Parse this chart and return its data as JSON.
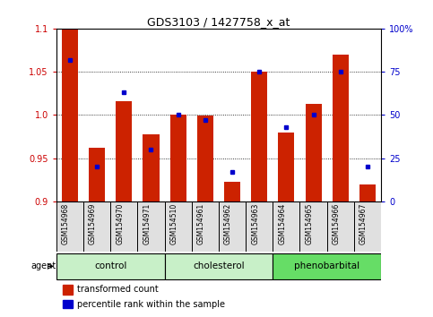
{
  "title": "GDS3103 / 1427758_x_at",
  "categories": [
    "GSM154968",
    "GSM154969",
    "GSM154970",
    "GSM154971",
    "GSM154510",
    "GSM154961",
    "GSM154962",
    "GSM154963",
    "GSM154964",
    "GSM154965",
    "GSM154966",
    "GSM154967"
  ],
  "red_values": [
    1.1,
    0.962,
    1.016,
    0.978,
    1.0,
    0.999,
    0.923,
    1.05,
    0.98,
    1.013,
    1.07,
    0.92
  ],
  "blue_values": [
    82,
    20,
    63,
    30,
    50,
    47,
    17,
    75,
    43,
    50,
    75,
    20
  ],
  "ylim_left": [
    0.9,
    1.1
  ],
  "ylim_right": [
    0,
    100
  ],
  "yticks_left": [
    0.9,
    0.95,
    1.0,
    1.05,
    1.1
  ],
  "yticks_right": [
    0,
    25,
    50,
    75,
    100
  ],
  "ytick_labels_right": [
    "0",
    "25",
    "50",
    "75",
    "100%"
  ],
  "groups": [
    {
      "label": "control",
      "start": 0,
      "end": 4,
      "color": "#c8f0c8"
    },
    {
      "label": "cholesterol",
      "start": 4,
      "end": 8,
      "color": "#c8f0c8"
    },
    {
      "label": "phenobarbital",
      "start": 8,
      "end": 12,
      "color": "#66dd66"
    }
  ],
  "agent_label": "agent",
  "bar_color": "#cc2200",
  "dot_color": "#0000cc",
  "legend_red": "transformed count",
  "legend_blue": "percentile rank within the sample",
  "left_color": "#cc0000",
  "right_color": "#0000cc"
}
